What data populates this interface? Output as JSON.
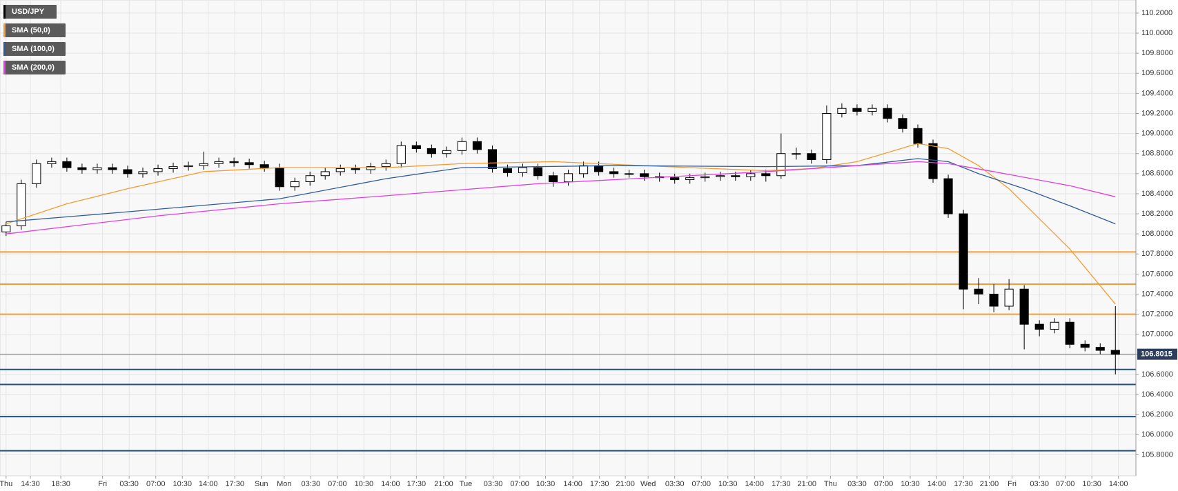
{
  "chart_data": {
    "type": "candlestick",
    "grid": true,
    "xlim": [
      -0.4,
      74.35
    ],
    "ylim": [
      105.59,
      110.33
    ],
    "yticks": [
      {
        "value": 105.8,
        "label": "105.8000"
      },
      {
        "value": 106.0,
        "label": "106.0000"
      },
      {
        "value": 106.2,
        "label": "106.2000"
      },
      {
        "value": 106.4,
        "label": "106.4000"
      },
      {
        "value": 106.6,
        "label": "106.6000"
      },
      {
        "value": 106.8,
        "label": "106.8000"
      },
      {
        "value": 107.0,
        "label": "107.0000"
      },
      {
        "value": 107.2,
        "label": "107.2000"
      },
      {
        "value": 107.4,
        "label": "107.4000"
      },
      {
        "value": 107.6,
        "label": "107.6000"
      },
      {
        "value": 107.8,
        "label": "107.8000"
      },
      {
        "value": 108.0,
        "label": "108.0000"
      },
      {
        "value": 108.2,
        "label": "108.2000"
      },
      {
        "value": 108.4,
        "label": "108.4000"
      },
      {
        "value": 108.6,
        "label": "108.6000"
      },
      {
        "value": 108.8,
        "label": "108.8000"
      },
      {
        "value": 109.0,
        "label": "109.0000"
      },
      {
        "value": 109.2,
        "label": "109.2000"
      },
      {
        "value": 109.4,
        "label": "109.4000"
      },
      {
        "value": 109.6,
        "label": "109.6000"
      },
      {
        "value": 109.8,
        "label": "109.8000"
      },
      {
        "value": 110.0,
        "label": "110.0000"
      },
      {
        "value": 110.2,
        "label": "110.2000"
      }
    ],
    "xticks": [
      {
        "value": 0,
        "label": "Thu"
      },
      {
        "value": 1.6,
        "label": "14:30"
      },
      {
        "value": 3.6,
        "label": "18:30"
      },
      {
        "value": 6.35,
        "label": "Fri"
      },
      {
        "value": 8.1,
        "label": "03:30"
      },
      {
        "value": 9.85,
        "label": "07:00"
      },
      {
        "value": 11.6,
        "label": "10:30"
      },
      {
        "value": 13.3,
        "label": "14:00"
      },
      {
        "value": 15.05,
        "label": "17:30"
      },
      {
        "value": 16.8,
        "label": "Sun"
      },
      {
        "value": 18.3,
        "label": "Mon"
      },
      {
        "value": 20.05,
        "label": "03:30"
      },
      {
        "value": 21.8,
        "label": "07:00"
      },
      {
        "value": 23.55,
        "label": "10:30"
      },
      {
        "value": 25.3,
        "label": "14:00"
      },
      {
        "value": 27,
        "label": "17:30"
      },
      {
        "value": 28.8,
        "label": "21:00"
      },
      {
        "value": 30.25,
        "label": "Tue"
      },
      {
        "value": 32.05,
        "label": "03:30"
      },
      {
        "value": 33.8,
        "label": "07:00"
      },
      {
        "value": 35.5,
        "label": "10:30"
      },
      {
        "value": 37.3,
        "label": "14:00"
      },
      {
        "value": 39.05,
        "label": "17:30"
      },
      {
        "value": 40.75,
        "label": "21:00"
      },
      {
        "value": 42.25,
        "label": "Wed"
      },
      {
        "value": 44,
        "label": "03:30"
      },
      {
        "value": 45.75,
        "label": "07:00"
      },
      {
        "value": 47.5,
        "label": "10:30"
      },
      {
        "value": 49.25,
        "label": "14:00"
      },
      {
        "value": 51,
        "label": "17:30"
      },
      {
        "value": 52.7,
        "label": "21:00"
      },
      {
        "value": 54.25,
        "label": "Thu"
      },
      {
        "value": 56,
        "label": "03:30"
      },
      {
        "value": 57.75,
        "label": "07:00"
      },
      {
        "value": 59.5,
        "label": "10:30"
      },
      {
        "value": 61.25,
        "label": "14:00"
      },
      {
        "value": 63,
        "label": "17:30"
      },
      {
        "value": 64.7,
        "label": "21:00"
      },
      {
        "value": 66.2,
        "label": "Fri"
      },
      {
        "value": 68,
        "label": "03:30"
      },
      {
        "value": 69.7,
        "label": "07:00"
      },
      {
        "value": 71.45,
        "label": "10:30"
      },
      {
        "value": 73.2,
        "label": "14:00"
      }
    ],
    "candles": {
      "name": "USD/JPY",
      "color": "#000000",
      "open": [
        108.02,
        108.08,
        108.5,
        108.7,
        108.72,
        108.66,
        108.64,
        108.66,
        108.64,
        108.6,
        108.62,
        108.65,
        108.67,
        108.68,
        108.7,
        108.72,
        108.71,
        108.69,
        108.66,
        108.47,
        108.52,
        108.58,
        108.62,
        108.65,
        108.64,
        108.67,
        108.7,
        108.88,
        108.85,
        108.8,
        108.83,
        108.92,
        108.84,
        108.65,
        108.61,
        108.66,
        108.58,
        108.52,
        108.6,
        108.68,
        108.62,
        108.6,
        108.6,
        108.57,
        108.56,
        108.54,
        108.56,
        108.57,
        108.58,
        108.57,
        108.6,
        108.58,
        108.8,
        108.8,
        108.74,
        109.2,
        109.25,
        109.22,
        109.25,
        109.15,
        109.05,
        108.9,
        108.55,
        108.2,
        107.45,
        107.4,
        107.28,
        107.45,
        107.1,
        107.05,
        107.12,
        106.9,
        106.87,
        106.84
      ],
      "high": [
        108.12,
        108.54,
        108.74,
        108.76,
        108.76,
        108.7,
        108.7,
        108.7,
        108.68,
        108.66,
        108.69,
        108.71,
        108.72,
        108.82,
        108.76,
        108.76,
        108.75,
        108.73,
        108.7,
        108.56,
        108.62,
        108.66,
        108.69,
        108.69,
        108.71,
        108.74,
        108.92,
        108.92,
        108.89,
        108.87,
        108.96,
        108.96,
        108.88,
        108.69,
        108.7,
        108.7,
        108.62,
        108.64,
        108.72,
        108.72,
        108.66,
        108.64,
        108.64,
        108.61,
        108.6,
        108.6,
        108.61,
        108.62,
        108.62,
        108.64,
        108.64,
        109.0,
        108.86,
        108.84,
        109.28,
        109.3,
        109.29,
        109.29,
        109.29,
        109.19,
        109.09,
        108.94,
        108.59,
        108.24,
        107.56,
        107.5,
        107.55,
        107.49,
        107.14,
        107.16,
        107.16,
        106.94,
        106.91,
        107.28
      ],
      "low": [
        107.98,
        108.04,
        108.46,
        108.66,
        108.62,
        108.6,
        108.6,
        108.6,
        108.56,
        108.56,
        108.58,
        108.61,
        108.63,
        108.64,
        108.66,
        108.67,
        108.65,
        108.62,
        108.43,
        108.43,
        108.48,
        108.54,
        108.58,
        108.6,
        108.6,
        108.63,
        108.66,
        108.81,
        108.76,
        108.76,
        108.79,
        108.8,
        108.61,
        108.57,
        108.57,
        108.54,
        108.47,
        108.48,
        108.56,
        108.58,
        108.56,
        108.56,
        108.53,
        108.52,
        108.5,
        108.5,
        108.52,
        108.53,
        108.53,
        108.53,
        108.52,
        108.55,
        108.74,
        108.7,
        108.7,
        109.16,
        109.18,
        109.18,
        109.11,
        109.01,
        108.86,
        108.51,
        108.16,
        107.25,
        107.3,
        107.22,
        107.24,
        106.85,
        106.98,
        107.01,
        106.86,
        106.83,
        106.8,
        106.6
      ],
      "close": [
        108.08,
        108.5,
        108.7,
        108.72,
        108.66,
        108.64,
        108.66,
        108.64,
        108.6,
        108.62,
        108.65,
        108.67,
        108.68,
        108.7,
        108.72,
        108.71,
        108.69,
        108.66,
        108.47,
        108.52,
        108.58,
        108.62,
        108.65,
        108.64,
        108.67,
        108.7,
        108.88,
        108.85,
        108.8,
        108.83,
        108.92,
        108.84,
        108.65,
        108.61,
        108.66,
        108.58,
        108.52,
        108.6,
        108.68,
        108.62,
        108.6,
        108.6,
        108.57,
        108.56,
        108.54,
        108.56,
        108.57,
        108.58,
        108.57,
        108.6,
        108.58,
        108.8,
        108.8,
        108.74,
        109.2,
        109.25,
        109.22,
        109.25,
        109.15,
        109.05,
        108.9,
        108.55,
        108.2,
        107.45,
        107.4,
        107.28,
        107.45,
        107.1,
        107.05,
        107.12,
        106.9,
        106.87,
        106.84,
        106.8
      ]
    },
    "indicators": [
      {
        "name": "SMA (50,0)",
        "color": "#f39c32",
        "x": [
          0,
          4,
          8,
          13,
          18,
          25,
          30,
          36,
          45,
          50,
          53,
          56,
          60,
          62,
          64,
          66,
          70,
          73
        ],
        "values": [
          108.1,
          108.3,
          108.45,
          108.62,
          108.66,
          108.66,
          108.7,
          108.72,
          108.66,
          108.63,
          108.65,
          108.72,
          108.9,
          108.85,
          108.68,
          108.45,
          107.85,
          107.3
        ]
      },
      {
        "name": "SMA (100,0)",
        "color": "#2e5c99",
        "x": [
          0,
          8,
          18,
          25,
          30,
          40,
          50,
          56,
          60,
          62,
          64,
          67,
          70,
          73
        ],
        "values": [
          108.12,
          108.22,
          108.35,
          108.55,
          108.66,
          108.68,
          108.67,
          108.68,
          108.75,
          108.72,
          108.6,
          108.45,
          108.28,
          108.1
        ]
      },
      {
        "name": "SMA (200,0)",
        "color": "#e040e0",
        "x": [
          0,
          10,
          18,
          25,
          35,
          45,
          50,
          56,
          60,
          62,
          65,
          70,
          73
        ],
        "values": [
          108.0,
          108.18,
          108.3,
          108.38,
          108.5,
          108.58,
          108.62,
          108.68,
          108.72,
          108.7,
          108.62,
          108.48,
          108.37
        ]
      }
    ],
    "levels": [
      {
        "value": 107.82,
        "color": "#f39c32"
      },
      {
        "value": 107.5,
        "color": "#f39c32"
      },
      {
        "value": 107.2,
        "color": "#f39c32"
      },
      {
        "value": 106.65,
        "color": "#1f4e8c"
      },
      {
        "value": 106.5,
        "color": "#1f4e8c"
      },
      {
        "value": 106.18,
        "color": "#1f4e8c"
      },
      {
        "value": 105.84,
        "color": "#1f4e8c"
      }
    ],
    "last_price": {
      "value": 106.8015,
      "color": "#2c3e5c"
    }
  }
}
